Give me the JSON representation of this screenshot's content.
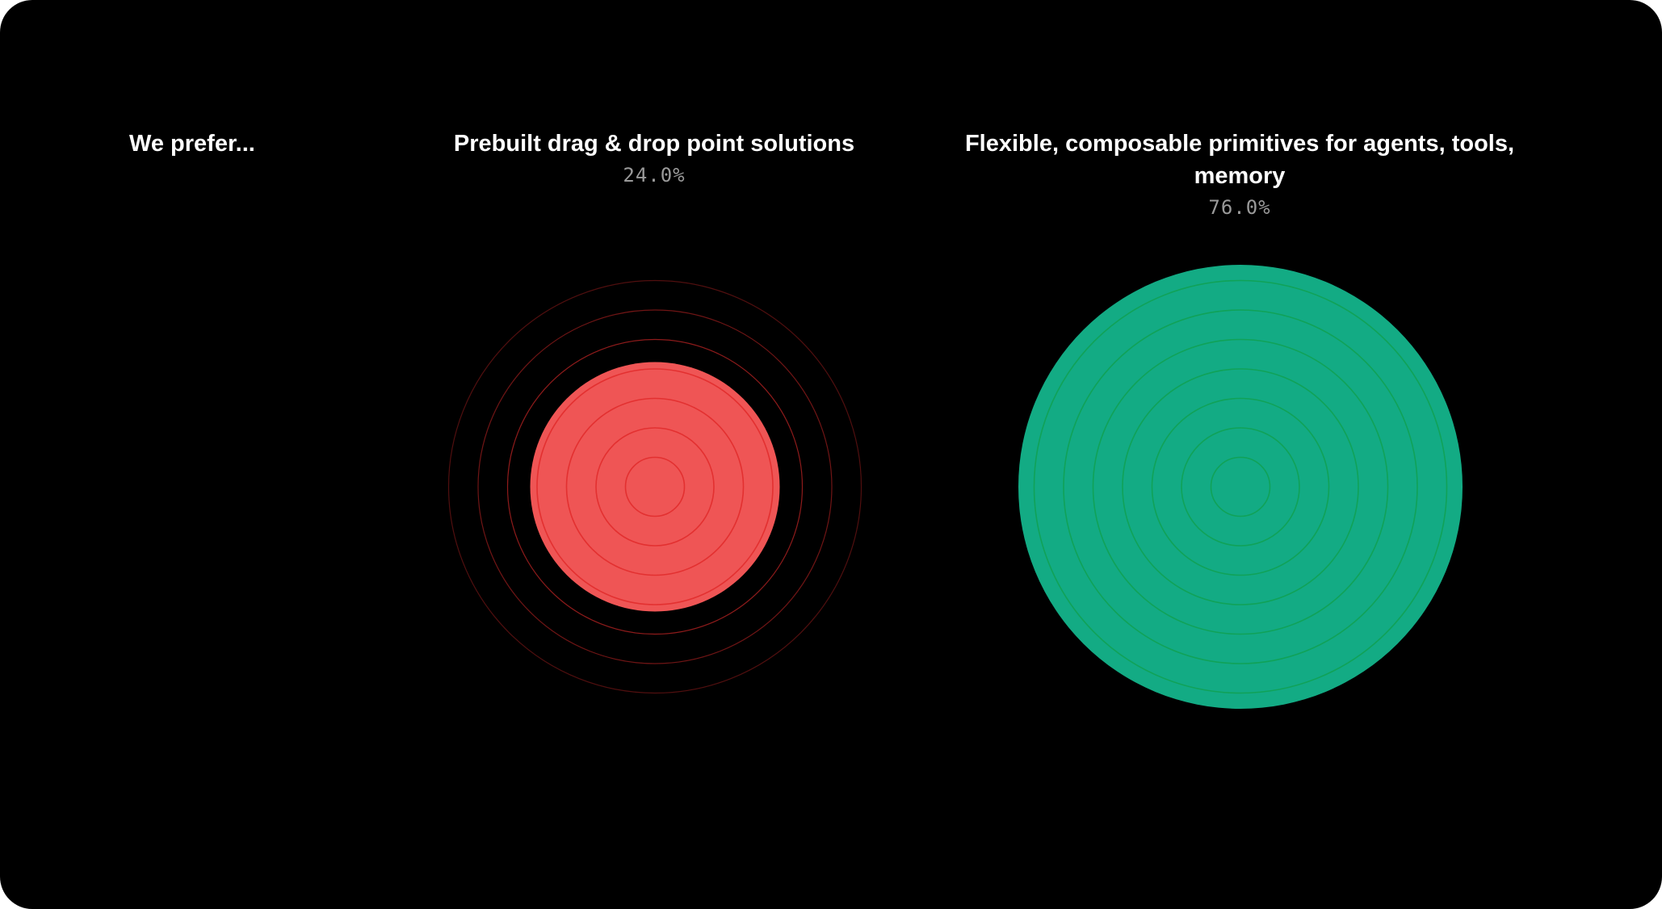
{
  "question": "We prefer...",
  "colors": {
    "background": "#000000",
    "negative_fill": "#ef5555",
    "negative_ring": "#e02a2a",
    "positive_fill": "#13ab84",
    "positive_ring": "#11a050"
  },
  "chart_data": {
    "type": "bubble",
    "title": "",
    "series": [
      {
        "label": "Prebuilt drag & drop point solutions",
        "value": 24.0,
        "display": "24.0%",
        "color": "#ef5555",
        "ring_color": "#e02a2a"
      },
      {
        "label": "Flexible, composable primitives for agents, tools, memory",
        "value": 76.0,
        "display": "76.0%",
        "color": "#13ab84",
        "ring_color": "#11a050"
      }
    ]
  }
}
